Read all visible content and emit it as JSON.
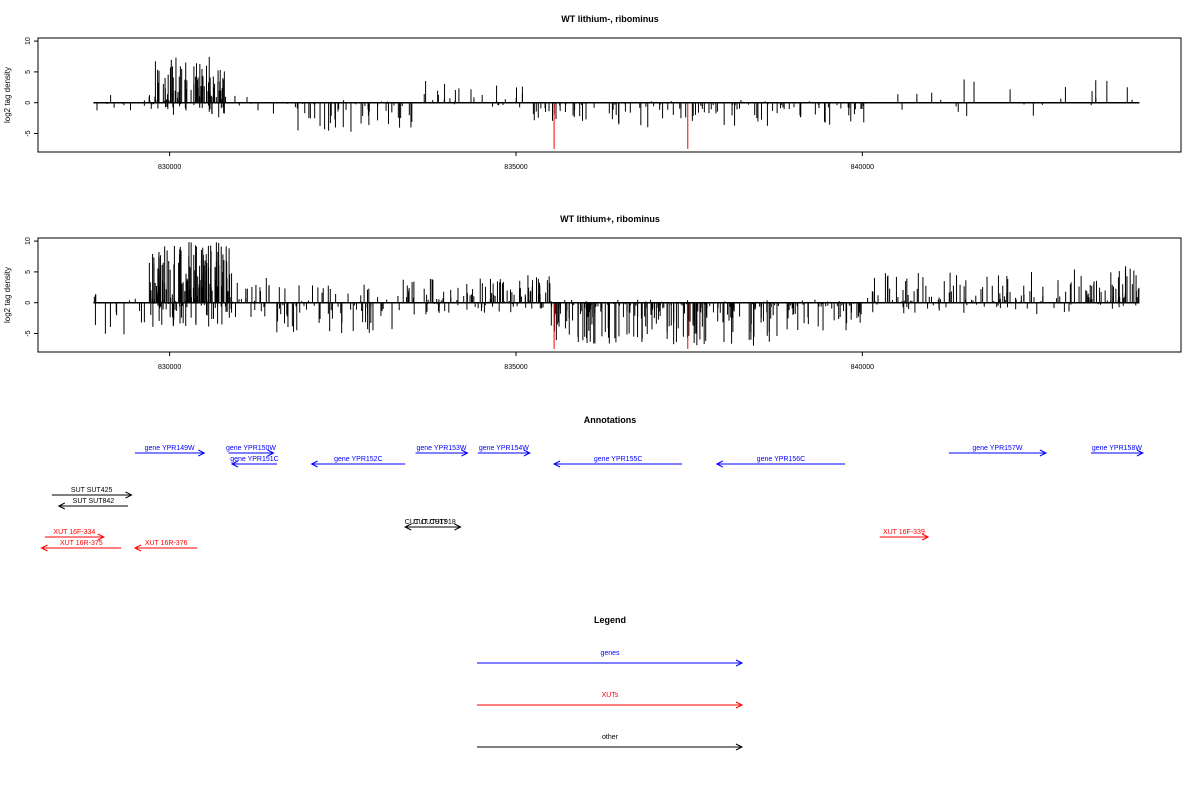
{
  "colors": {
    "default": "#000000",
    "highlight": "#ff0000",
    "gene": "#0000ff",
    "xut": "#ff0000",
    "other": "#000000"
  },
  "chart_data": [
    {
      "type": "bar",
      "title": "WT lithium-, ribominus",
      "ylabel": "log2 tag density",
      "xlim": [
        828100,
        844600
      ],
      "ylim": [
        -8,
        10.5
      ],
      "xticks": [
        830000,
        835000,
        840000
      ],
      "yticks": [
        -5,
        0,
        5,
        10
      ],
      "ytick_labels": [
        "-5",
        "0",
        "5",
        "10"
      ],
      "baseline": [
        828900,
        844000
      ],
      "highlighted_bars": [
        {
          "x": 835550,
          "y": -7.5
        },
        {
          "x": 837480,
          "y": -7.5
        }
      ],
      "regions": [
        {
          "from": 828900,
          "to": 829200,
          "min": -1.5,
          "max": 2,
          "n": 5
        },
        {
          "from": 829200,
          "to": 829700,
          "min": -2,
          "max": 0.5,
          "n": 5
        },
        {
          "from": 829700,
          "to": 830800,
          "min": -2.5,
          "max": 7.5,
          "n": 140
        },
        {
          "from": 830800,
          "to": 831800,
          "min": -2,
          "max": 1.5,
          "n": 8
        },
        {
          "from": 831800,
          "to": 833500,
          "min": -4.8,
          "max": 0.5,
          "n": 55
        },
        {
          "from": 833500,
          "to": 835200,
          "min": -1,
          "max": 4,
          "n": 35
        },
        {
          "from": 835200,
          "to": 836300,
          "min": -3.5,
          "max": 0,
          "n": 30
        },
        {
          "from": 836300,
          "to": 838700,
          "min": -4,
          "max": 0.5,
          "n": 60
        },
        {
          "from": 838700,
          "to": 840100,
          "min": -3.8,
          "max": 0.3,
          "n": 35
        },
        {
          "from": 840500,
          "to": 844000,
          "min": -2.5,
          "max": 4,
          "n": 30
        }
      ]
    },
    {
      "type": "bar",
      "title": "WT lithium+, ribominus",
      "ylabel": "log2 tag density",
      "xlim": [
        828100,
        844600
      ],
      "ylim": [
        -8,
        10.5
      ],
      "xticks": [
        830000,
        835000,
        840000
      ],
      "yticks": [
        -5,
        0,
        5,
        10
      ],
      "ytick_labels": [
        "-5",
        "0",
        "5",
        "10"
      ],
      "baseline": [
        828900,
        844000
      ],
      "highlighted_bars": [
        {
          "x": 835550,
          "y": -7.5
        },
        {
          "x": 837480,
          "y": -7.5
        }
      ],
      "regions": [
        {
          "from": 828900,
          "to": 829700,
          "min": -6,
          "max": 2,
          "n": 20
        },
        {
          "from": 829700,
          "to": 830900,
          "min": -4,
          "max": 10,
          "n": 220
        },
        {
          "from": 830900,
          "to": 831500,
          "min": -3,
          "max": 5,
          "n": 25
        },
        {
          "from": 831500,
          "to": 833300,
          "min": -5,
          "max": 3,
          "n": 90
        },
        {
          "from": 833300,
          "to": 835000,
          "min": -2,
          "max": 4,
          "n": 90
        },
        {
          "from": 835000,
          "to": 835500,
          "min": -1,
          "max": 5,
          "n": 40
        },
        {
          "from": 835500,
          "to": 838800,
          "min": -7,
          "max": 0.5,
          "n": 220
        },
        {
          "from": 838800,
          "to": 840000,
          "min": -4.5,
          "max": 0.5,
          "n": 60
        },
        {
          "from": 840000,
          "to": 843000,
          "min": -2,
          "max": 5,
          "n": 130
        },
        {
          "from": 843000,
          "to": 844000,
          "min": -1,
          "max": 6,
          "n": 70
        }
      ]
    }
  ],
  "annotations": {
    "title": "Annotations",
    "items": [
      {
        "label": "gene YPR149W",
        "kind": "gene",
        "from": 829500,
        "to": 830500,
        "strand": "+",
        "row": 0
      },
      {
        "label": "gene YPR150W",
        "kind": "gene",
        "from": 830850,
        "to": 831500,
        "strand": "+",
        "row": 0
      },
      {
        "label": "gene YPR151C",
        "kind": "gene",
        "from": 830900,
        "to": 831550,
        "strand": "-",
        "row": 1
      },
      {
        "label": "gene YPR152C",
        "kind": "gene",
        "from": 832050,
        "to": 833400,
        "strand": "-",
        "row": 1
      },
      {
        "label": "gene YPR153W",
        "kind": "gene",
        "from": 833550,
        "to": 834300,
        "strand": "+",
        "row": 0
      },
      {
        "label": "gene YPR154W",
        "kind": "gene",
        "from": 834450,
        "to": 835200,
        "strand": "+",
        "row": 0
      },
      {
        "label": "gene YPR155C",
        "kind": "gene",
        "from": 835550,
        "to": 837400,
        "strand": "-",
        "row": 1
      },
      {
        "label": "gene YPR156C",
        "kind": "gene",
        "from": 837900,
        "to": 839750,
        "strand": "-",
        "row": 1
      },
      {
        "label": "gene YPR157W",
        "kind": "gene",
        "from": 841250,
        "to": 842650,
        "strand": "+",
        "row": 0
      },
      {
        "label": "gene YPR158W",
        "kind": "gene",
        "from": 843300,
        "to": 844050,
        "strand": "+",
        "row": 0
      },
      {
        "label": "SUT SUT425",
        "kind": "other",
        "from": 828300,
        "to": 829450,
        "strand": "+",
        "row": 2
      },
      {
        "label": "SUT SUT842",
        "kind": "other",
        "from": 828400,
        "to": 829400,
        "strand": "-",
        "row": 3
      },
      {
        "label": "CUT CUT917",
        "kind": "other",
        "from": 833400,
        "to": 834000,
        "strand": "-",
        "row": 4
      },
      {
        "label": "CUT CUT918",
        "kind": "other",
        "from": 833450,
        "to": 834200,
        "strand": "+",
        "row": 4
      },
      {
        "label": "XUT 16F-334",
        "kind": "xut",
        "from": 828200,
        "to": 829050,
        "strand": "+",
        "row": 5
      },
      {
        "label": "XUT 16R-375",
        "kind": "xut",
        "from": 828150,
        "to": 829300,
        "strand": "-",
        "row": 6
      },
      {
        "label": "XUT 16R-376",
        "kind": "xut",
        "from": 829500,
        "to": 830400,
        "strand": "-",
        "row": 6
      },
      {
        "label": "XUT 16F-339",
        "kind": "xut",
        "from": 840250,
        "to": 840950,
        "strand": "+",
        "row": 5
      }
    ]
  },
  "legend": {
    "title": "Legend",
    "items": [
      {
        "label": "genes",
        "kind": "gene"
      },
      {
        "label": "XUTs",
        "kind": "xut"
      },
      {
        "label": "other",
        "kind": "other"
      }
    ]
  }
}
